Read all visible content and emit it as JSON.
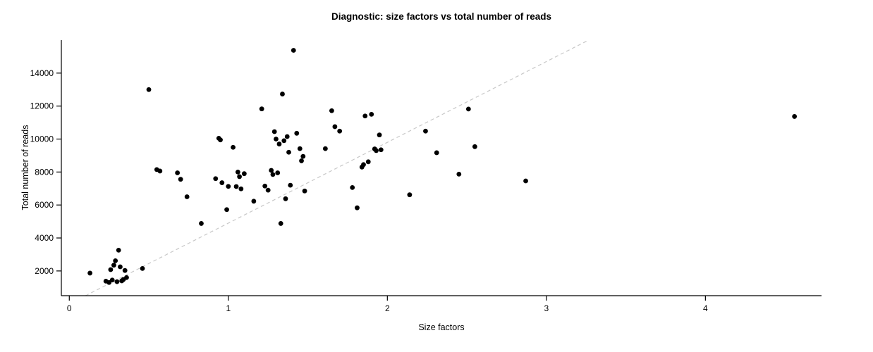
{
  "chart_data": {
    "type": "scatter",
    "title": "Diagnostic: size factors vs total number of reads",
    "xlabel": "Size factors",
    "ylabel": "Total number of reads",
    "xlim": [
      -0.05,
      4.73
    ],
    "ylim": [
      500,
      16000
    ],
    "x_ticks": [
      0,
      1,
      2,
      3,
      4
    ],
    "y_ticks": [
      2000,
      4000,
      6000,
      8000,
      10000,
      12000,
      14000
    ],
    "grid": false,
    "legend": "none",
    "point_color": "#000000",
    "point_radius": 3.4,
    "trend_line": {
      "slope": 4900,
      "intercept": 0,
      "color": "#c8c8c8",
      "style": "dashed"
    },
    "points": [
      [
        0.13,
        1870
      ],
      [
        0.23,
        1380
      ],
      [
        0.25,
        1300
      ],
      [
        0.26,
        2080
      ],
      [
        0.27,
        1450
      ],
      [
        0.28,
        2350
      ],
      [
        0.29,
        2620
      ],
      [
        0.3,
        1350
      ],
      [
        0.31,
        3260
      ],
      [
        0.32,
        2250
      ],
      [
        0.33,
        1400
      ],
      [
        0.34,
        1480
      ],
      [
        0.35,
        2030
      ],
      [
        0.36,
        1600
      ],
      [
        0.46,
        2150
      ],
      [
        0.5,
        13000
      ],
      [
        0.55,
        8150
      ],
      [
        0.57,
        8060
      ],
      [
        0.68,
        7950
      ],
      [
        0.7,
        7560
      ],
      [
        0.74,
        6500
      ],
      [
        0.83,
        4880
      ],
      [
        0.92,
        7600
      ],
      [
        0.94,
        10050
      ],
      [
        0.95,
        9950
      ],
      [
        0.96,
        7350
      ],
      [
        0.99,
        5720
      ],
      [
        1.0,
        7130
      ],
      [
        1.03,
        9500
      ],
      [
        1.05,
        7120
      ],
      [
        1.06,
        8000
      ],
      [
        1.07,
        7720
      ],
      [
        1.08,
        6980
      ],
      [
        1.1,
        7900
      ],
      [
        1.16,
        6230
      ],
      [
        1.21,
        11830
      ],
      [
        1.23,
        7150
      ],
      [
        1.25,
        6900
      ],
      [
        1.27,
        8100
      ],
      [
        1.28,
        7850
      ],
      [
        1.29,
        10450
      ],
      [
        1.3,
        10000
      ],
      [
        1.31,
        7950
      ],
      [
        1.32,
        9700
      ],
      [
        1.33,
        4880
      ],
      [
        1.34,
        12730
      ],
      [
        1.35,
        9900
      ],
      [
        1.36,
        6380
      ],
      [
        1.37,
        10150
      ],
      [
        1.38,
        9200
      ],
      [
        1.39,
        7200
      ],
      [
        1.41,
        15380
      ],
      [
        1.43,
        10350
      ],
      [
        1.45,
        9420
      ],
      [
        1.46,
        8680
      ],
      [
        1.47,
        8950
      ],
      [
        1.48,
        6850
      ],
      [
        1.61,
        9420
      ],
      [
        1.65,
        11720
      ],
      [
        1.67,
        10750
      ],
      [
        1.7,
        10480
      ],
      [
        1.78,
        7060
      ],
      [
        1.81,
        5830
      ],
      [
        1.84,
        8300
      ],
      [
        1.85,
        8450
      ],
      [
        1.86,
        11400
      ],
      [
        1.88,
        8620
      ],
      [
        1.9,
        11500
      ],
      [
        1.92,
        9400
      ],
      [
        1.93,
        9300
      ],
      [
        1.95,
        10250
      ],
      [
        1.96,
        9350
      ],
      [
        2.14,
        6620
      ],
      [
        2.24,
        10480
      ],
      [
        2.31,
        9170
      ],
      [
        2.45,
        7870
      ],
      [
        2.51,
        11820
      ],
      [
        2.55,
        9540
      ],
      [
        2.87,
        7460
      ],
      [
        4.56,
        11370
      ]
    ]
  }
}
